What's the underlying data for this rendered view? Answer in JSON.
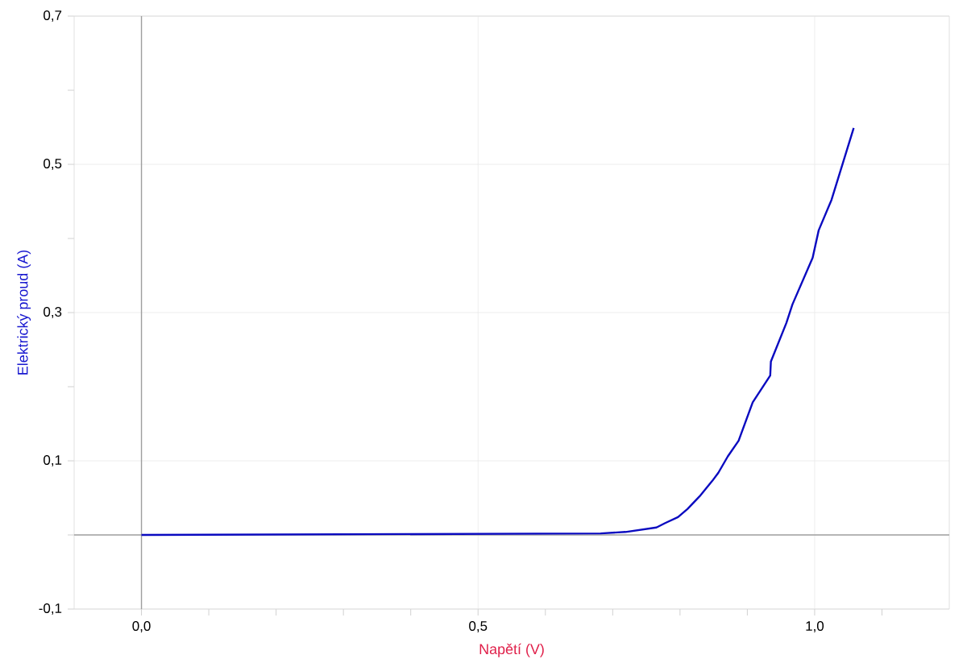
{
  "chart_data": {
    "type": "line",
    "xlabel": "Napětí (V)",
    "ylabel": "Elektrický proud (A)",
    "x": [
      0,
      0.682,
      0.719,
      0.765,
      0.778,
      0.797,
      0.811,
      0.829,
      0.848,
      0.857,
      0.871,
      0.887,
      0.908,
      0.934,
      0.935,
      0.958,
      0.967,
      0.997,
      1.006,
      1.025,
      1.058
    ],
    "series": [
      {
        "color": "#0a0ac0",
        "values": [
          0,
          0.002,
          0.004,
          0.01,
          0.016,
          0.024,
          0.035,
          0.052,
          0.073,
          0.084,
          0.106,
          0.127,
          0.179,
          0.215,
          0.234,
          0.286,
          0.311,
          0.374,
          0.411,
          0.452,
          0.549
        ]
      }
    ],
    "xlim": [
      -0.1,
      1.2
    ],
    "ylim": [
      -0.1,
      0.7
    ],
    "xticks": [
      {
        "value": 0,
        "label": "0,0"
      },
      {
        "value": 0.1,
        "label": null
      },
      {
        "value": 0.2,
        "label": null
      },
      {
        "value": 0.3,
        "label": null
      },
      {
        "value": 0.4,
        "label": null
      },
      {
        "value": 0.5,
        "label": "0,5"
      },
      {
        "value": 0.6,
        "label": null
      },
      {
        "value": 0.7,
        "label": null
      },
      {
        "value": 0.8,
        "label": null
      },
      {
        "value": 0.9,
        "label": null
      },
      {
        "value": 1.0,
        "label": "1,0"
      },
      {
        "value": 1.1,
        "label": null
      }
    ],
    "yticks": [
      {
        "value": -0.1,
        "label": "-0,1"
      },
      {
        "value": 0,
        "label": null
      },
      {
        "value": 0.1,
        "label": "0,1"
      },
      {
        "value": 0.2,
        "label": null
      },
      {
        "value": 0.3,
        "label": "0,3"
      },
      {
        "value": 0.4,
        "label": null
      },
      {
        "value": 0.5,
        "label": "0,5"
      },
      {
        "value": 0.6,
        "label": null
      },
      {
        "value": 0.7,
        "label": "0,7"
      }
    ],
    "grid": true,
    "marker": "none",
    "line_style": "solid"
  }
}
